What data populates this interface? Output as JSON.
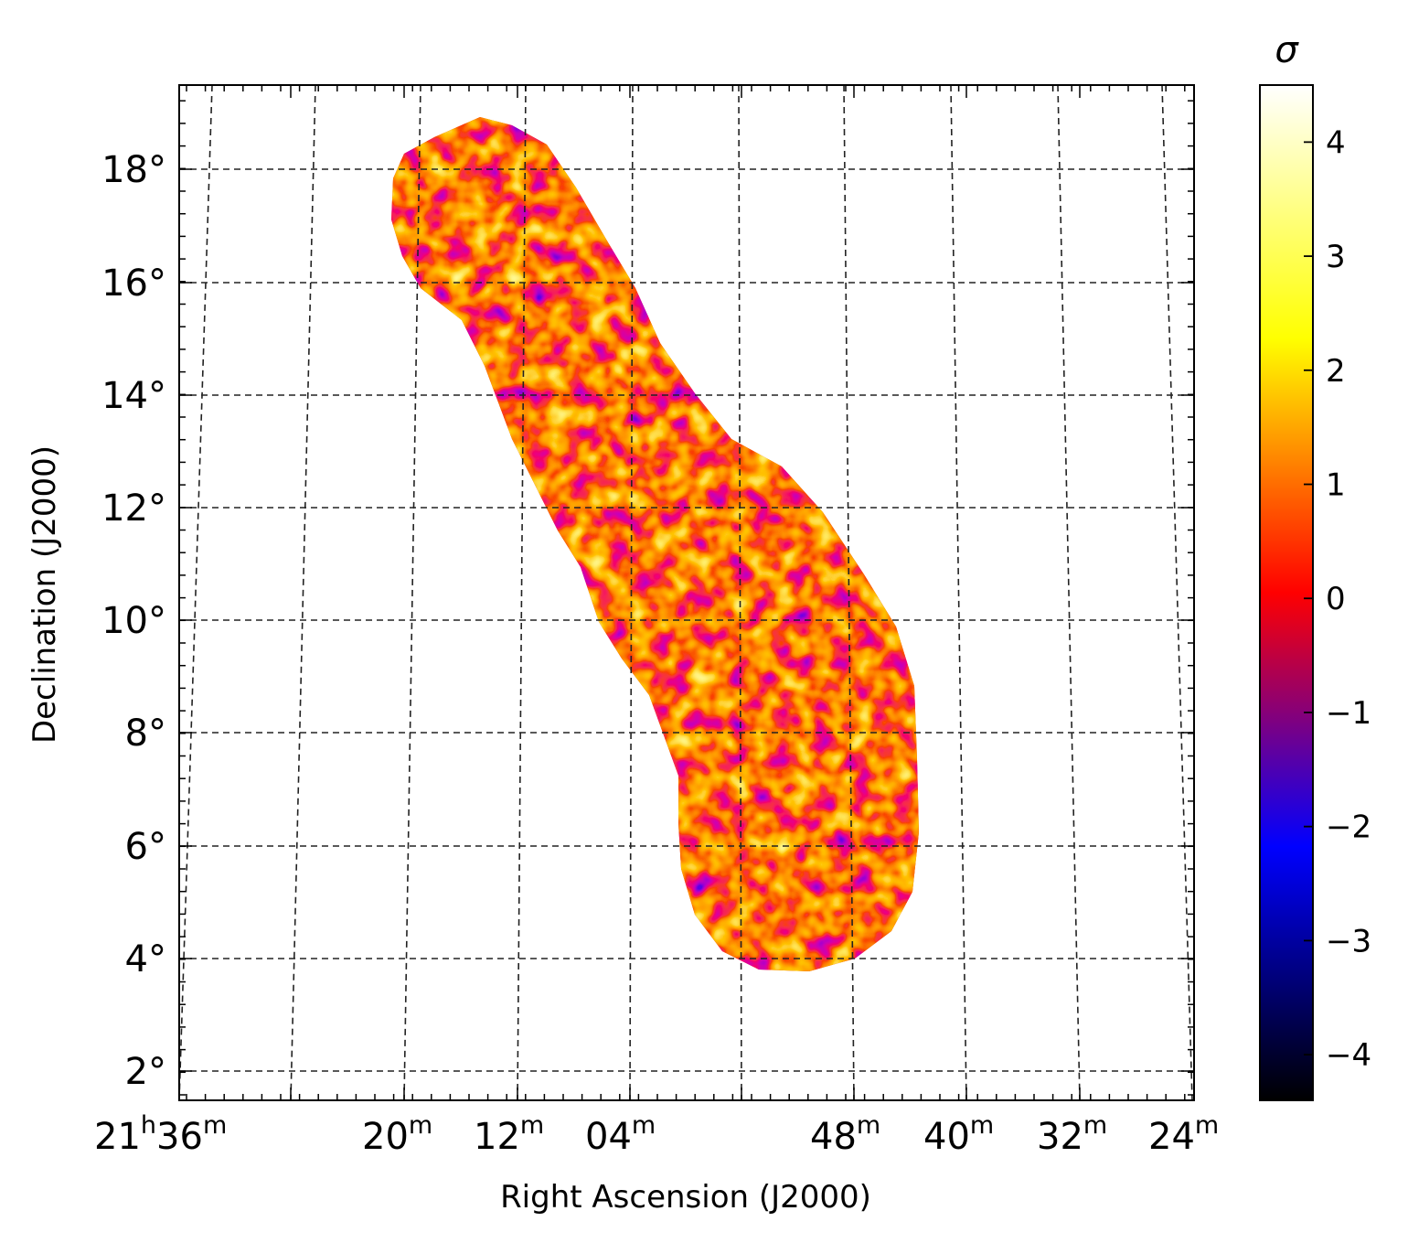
{
  "chart_data": {
    "type": "heatmap",
    "title": "",
    "xlabel": "Right Ascension (J2000)",
    "ylabel": "Declination (J2000)",
    "grid": true,
    "x_ticks": [
      {
        "label_main": "21",
        "label_h": "h",
        "label_min": "36",
        "label_m": "m"
      },
      {
        "label_min": "20",
        "label_m": "m"
      },
      {
        "label_min": "12",
        "label_m": "m"
      },
      {
        "label_min": "04",
        "label_m": "m"
      },
      {
        "label_min": "48",
        "label_m": "m"
      },
      {
        "label_min": "40",
        "label_m": "m"
      },
      {
        "label_min": "32",
        "label_m": "m"
      },
      {
        "label_min": "24",
        "label_m": "m"
      }
    ],
    "y_ticks": [
      "2°",
      "4°",
      "6°",
      "8°",
      "10°",
      "12°",
      "14°",
      "16°",
      "18°"
    ],
    "ylim": [
      1.6,
      19.6
    ],
    "colorbar": {
      "label": "σ",
      "range": [
        -4.4,
        4.5
      ],
      "ticks": [
        {
          "value": 4,
          "label": "4"
        },
        {
          "value": 3,
          "label": "3"
        },
        {
          "value": 2,
          "label": "2"
        },
        {
          "value": 1,
          "label": "1"
        },
        {
          "value": 0,
          "label": "0"
        },
        {
          "value": -1,
          "label": "−1"
        },
        {
          "value": -2,
          "label": "−2"
        },
        {
          "value": -3,
          "label": "−3"
        },
        {
          "value": -4,
          "label": "−4"
        }
      ],
      "colormap": [
        "#000000",
        "#0000ff",
        "#ff0000",
        "#ffff00",
        "#ffffff"
      ]
    },
    "map_colors": {
      "low": "#1a00e0",
      "mid_low": "#a0005a",
      "mid": "#e60000",
      "mid_high": "#ff7a00",
      "high": "#ffe65a"
    }
  }
}
